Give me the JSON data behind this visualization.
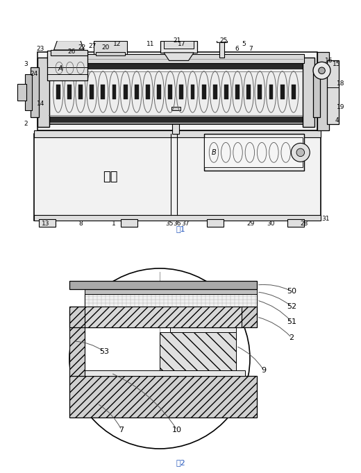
{
  "bg_color": "#ffffff",
  "line_color": "#000000",
  "fig1_caption": "图1",
  "fig2_caption": "图2",
  "shuixiang_text": "水箱",
  "label_A": "A",
  "label_B": "B"
}
